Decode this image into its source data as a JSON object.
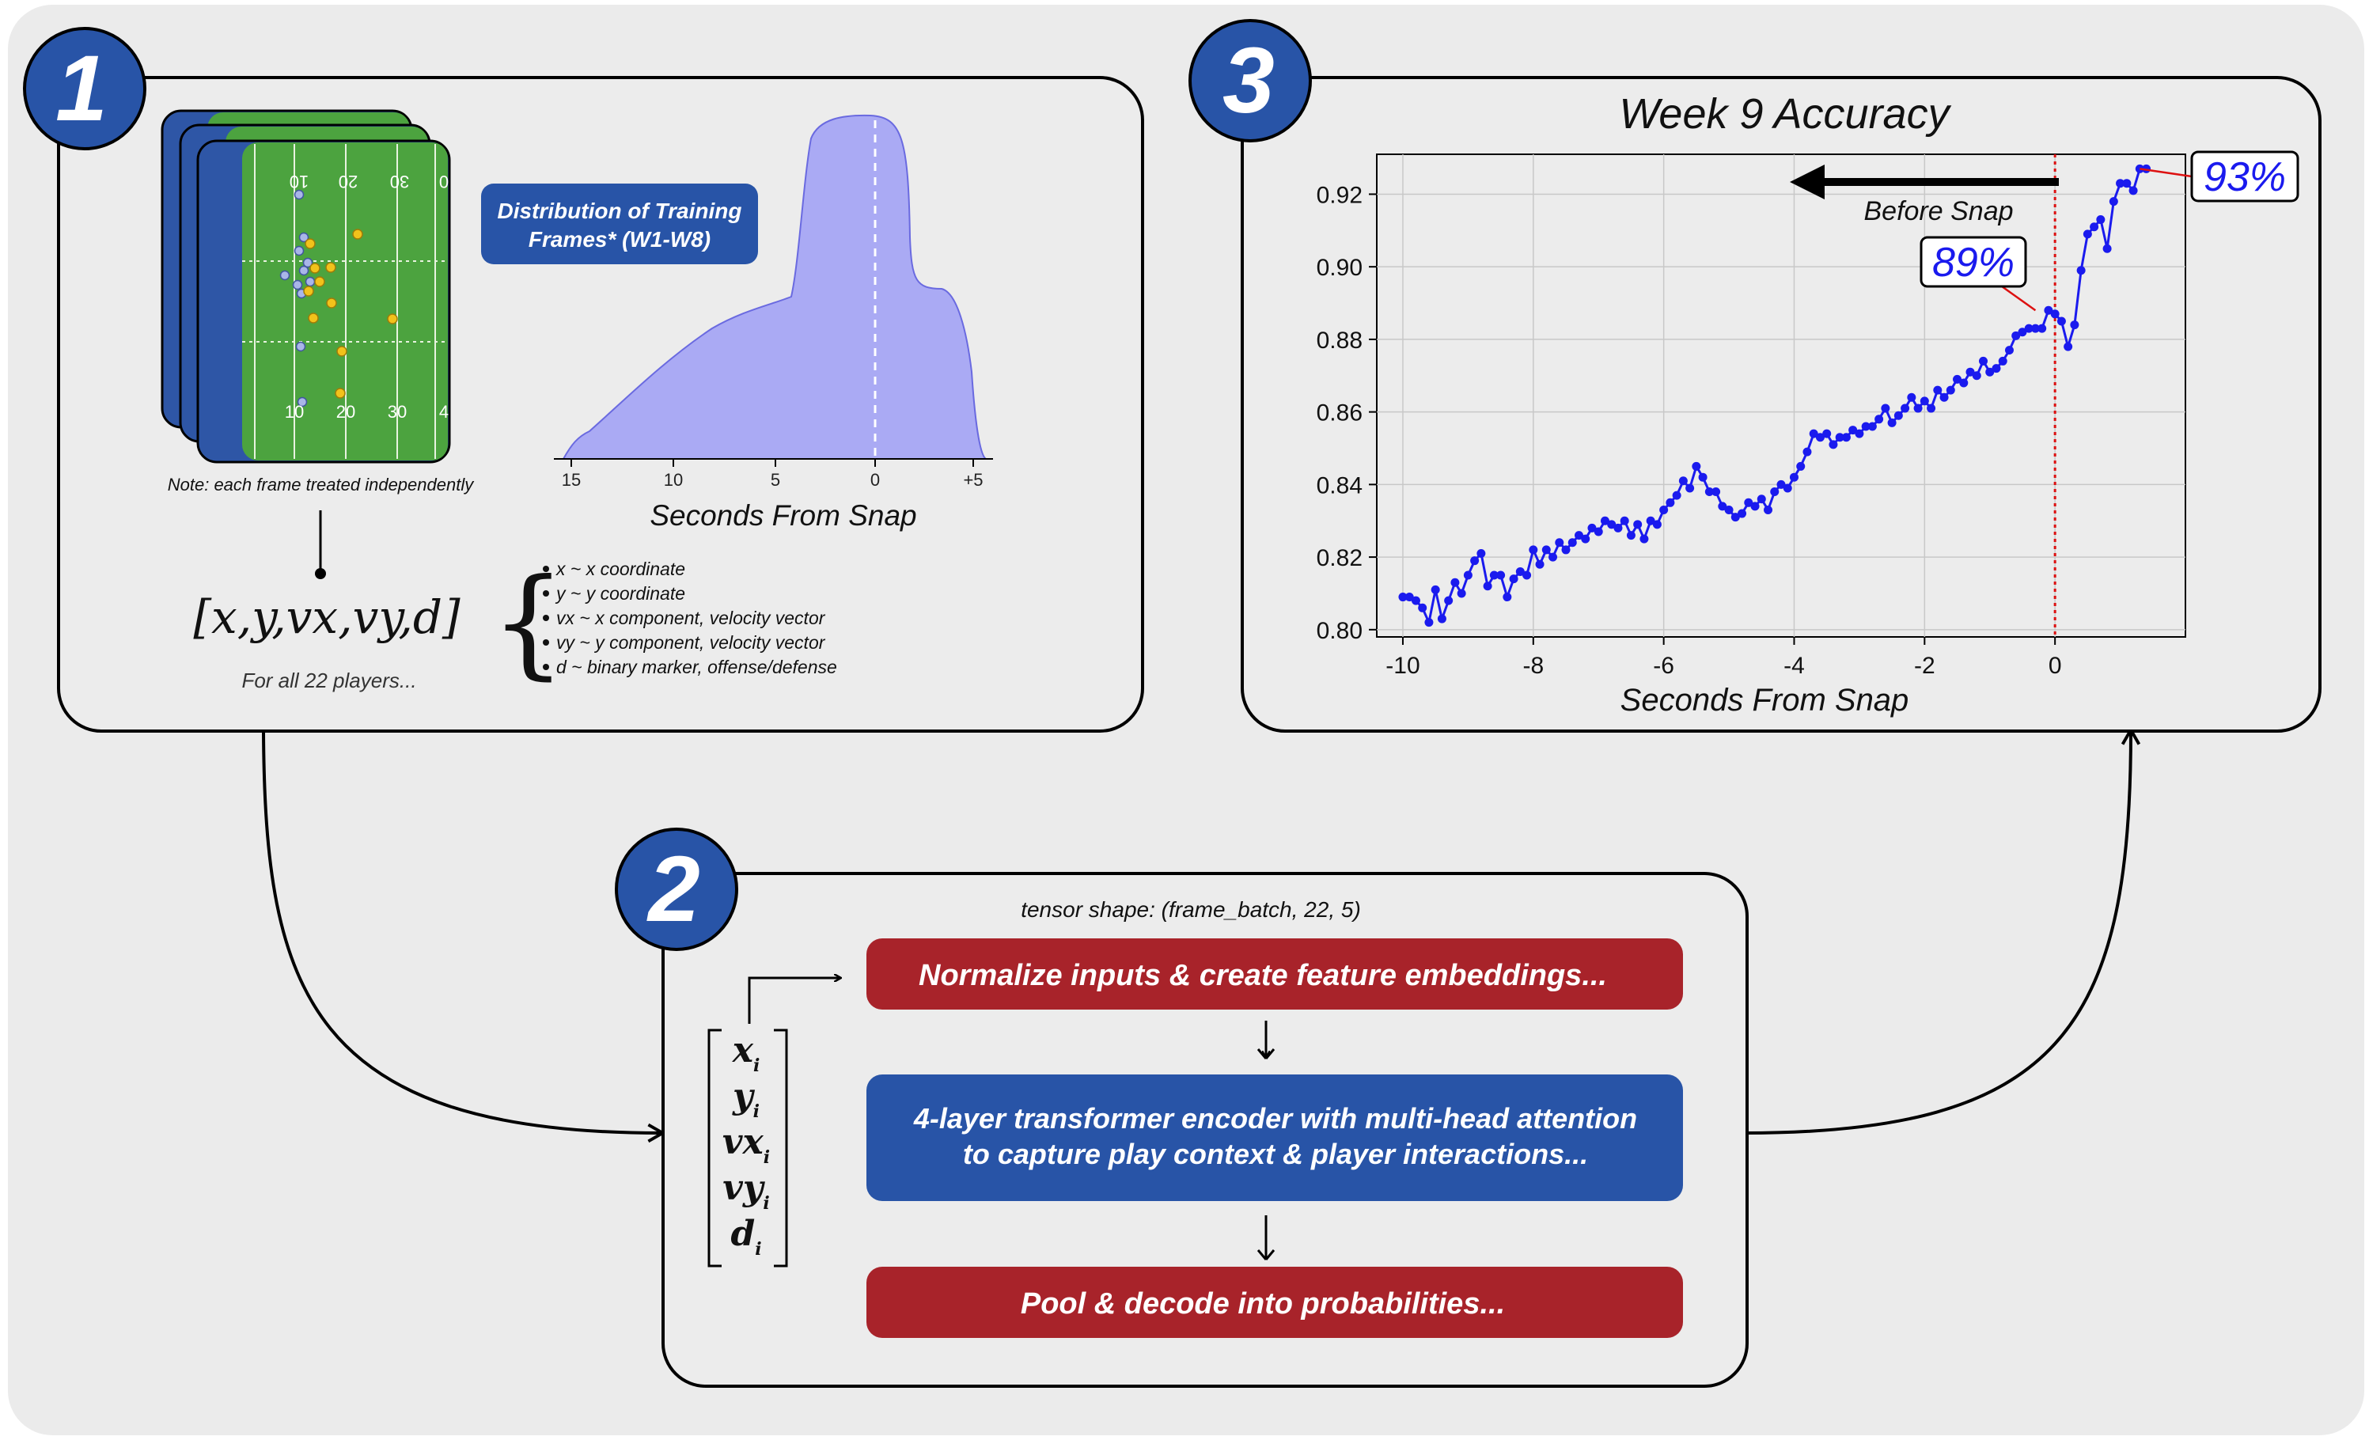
{
  "panels": {
    "p1": {
      "number": "1"
    },
    "p2": {
      "number": "2"
    },
    "p3": {
      "number": "3"
    }
  },
  "field": {
    "top_numbers": [
      "10",
      "20",
      "30",
      "0"
    ],
    "bottom_numbers": [
      "10",
      "20",
      "30",
      "4"
    ],
    "note": "Note: each frame treated independently"
  },
  "distribution": {
    "label_line1": "Distribution of Training",
    "label_line2": "Frames* (W1-W8)",
    "xticks": [
      "15",
      "10",
      "5",
      "0",
      "+5"
    ],
    "xlabel": "Seconds From Snap"
  },
  "vector": {
    "main": "[x,y,vx,vy,d]",
    "caption": "For all 22 players...",
    "definitions": [
      "x ~ x coordinate",
      "y ~ y coordinate",
      "vx ~ x component, velocity vector",
      "vy ~ y component, velocity vector",
      "d ~ binary marker, offense/defense"
    ]
  },
  "model": {
    "tensor_shape": "tensor shape: (frame_batch, 22, 5)",
    "step1": "Normalize inputs & create feature embeddings...",
    "step2_line1": "4-layer transformer encoder with multi-head attention",
    "step2_line2": "to capture play context & player interactions...",
    "step3": "Pool & decode into probabilities...",
    "vector_entries": [
      "x",
      "y",
      "vx",
      "vy",
      "d"
    ],
    "vector_subscript": "i"
  },
  "colors": {
    "red": "#a8232a",
    "blue": "#2854a7",
    "field_green": "#4ca33f",
    "field_endzone": "#2e56a6",
    "series": "#1a1aee",
    "density_fill": "#aaaaf4"
  },
  "chart_data": {
    "type": "line",
    "title": "Week 9 Accuracy",
    "xlabel": "Seconds From Snap",
    "ylabel": "",
    "xlim": [
      -10.4,
      2.0
    ],
    "ylim": [
      0.798,
      0.931
    ],
    "xticks": [
      "-10",
      "-8",
      "-6",
      "-4",
      "-2",
      "0"
    ],
    "yticks": [
      "0.80",
      "0.82",
      "0.84",
      "0.86",
      "0.88",
      "0.90",
      "0.92"
    ],
    "grid": true,
    "snap_line_x": 0,
    "arrow_label": "Before Snap",
    "annotations": [
      {
        "text": "89%",
        "x": -0.3,
        "y": 0.888
      },
      {
        "text": "93%",
        "x": 1.3,
        "y": 0.927
      }
    ],
    "x": [
      -10.0,
      -9.9,
      -9.8,
      -9.7,
      -9.6,
      -9.5,
      -9.4,
      -9.3,
      -9.2,
      -9.1,
      -9.0,
      -8.9,
      -8.8,
      -8.7,
      -8.6,
      -8.5,
      -8.4,
      -8.3,
      -8.2,
      -8.1,
      -8.0,
      -7.9,
      -7.8,
      -7.7,
      -7.6,
      -7.5,
      -7.4,
      -7.3,
      -7.2,
      -7.1,
      -7.0,
      -6.9,
      -6.8,
      -6.7,
      -6.6,
      -6.5,
      -6.4,
      -6.3,
      -6.2,
      -6.1,
      -6.0,
      -5.9,
      -5.8,
      -5.7,
      -5.6,
      -5.5,
      -5.4,
      -5.3,
      -5.2,
      -5.1,
      -5.0,
      -4.9,
      -4.8,
      -4.7,
      -4.6,
      -4.5,
      -4.4,
      -4.3,
      -4.2,
      -4.1,
      -4.0,
      -3.9,
      -3.8,
      -3.7,
      -3.6,
      -3.5,
      -3.4,
      -3.3,
      -3.2,
      -3.1,
      -3.0,
      -2.9,
      -2.8,
      -2.7,
      -2.6,
      -2.5,
      -2.4,
      -2.3,
      -2.2,
      -2.1,
      -2.0,
      -1.9,
      -1.8,
      -1.7,
      -1.6,
      -1.5,
      -1.4,
      -1.3,
      -1.2,
      -1.1,
      -1.0,
      -0.9,
      -0.8,
      -0.7,
      -0.6,
      -0.5,
      -0.4,
      -0.3,
      -0.2,
      -0.1,
      0.0,
      0.1,
      0.2,
      0.3,
      0.4,
      0.5,
      0.6,
      0.7,
      0.8,
      0.9,
      1.0,
      1.1,
      1.2,
      1.3,
      1.4
    ],
    "y": [
      0.809,
      0.809,
      0.808,
      0.806,
      0.802,
      0.811,
      0.803,
      0.808,
      0.813,
      0.81,
      0.815,
      0.819,
      0.821,
      0.812,
      0.815,
      0.815,
      0.809,
      0.814,
      0.816,
      0.815,
      0.822,
      0.818,
      0.822,
      0.82,
      0.824,
      0.822,
      0.824,
      0.826,
      0.825,
      0.828,
      0.827,
      0.83,
      0.829,
      0.828,
      0.83,
      0.826,
      0.829,
      0.825,
      0.83,
      0.829,
      0.833,
      0.835,
      0.837,
      0.841,
      0.839,
      0.845,
      0.842,
      0.838,
      0.838,
      0.834,
      0.833,
      0.831,
      0.832,
      0.835,
      0.834,
      0.836,
      0.833,
      0.838,
      0.84,
      0.839,
      0.842,
      0.845,
      0.849,
      0.854,
      0.853,
      0.854,
      0.851,
      0.853,
      0.853,
      0.855,
      0.854,
      0.856,
      0.856,
      0.858,
      0.861,
      0.857,
      0.859,
      0.861,
      0.864,
      0.861,
      0.863,
      0.861,
      0.866,
      0.864,
      0.866,
      0.869,
      0.868,
      0.871,
      0.87,
      0.874,
      0.871,
      0.872,
      0.874,
      0.877,
      0.881,
      0.882,
      0.883,
      0.883,
      0.883,
      0.888,
      0.887,
      0.885,
      0.878,
      0.884,
      0.899,
      0.909,
      0.911,
      0.913,
      0.905,
      0.918,
      0.923,
      0.923,
      0.921,
      0.927,
      0.927
    ]
  }
}
